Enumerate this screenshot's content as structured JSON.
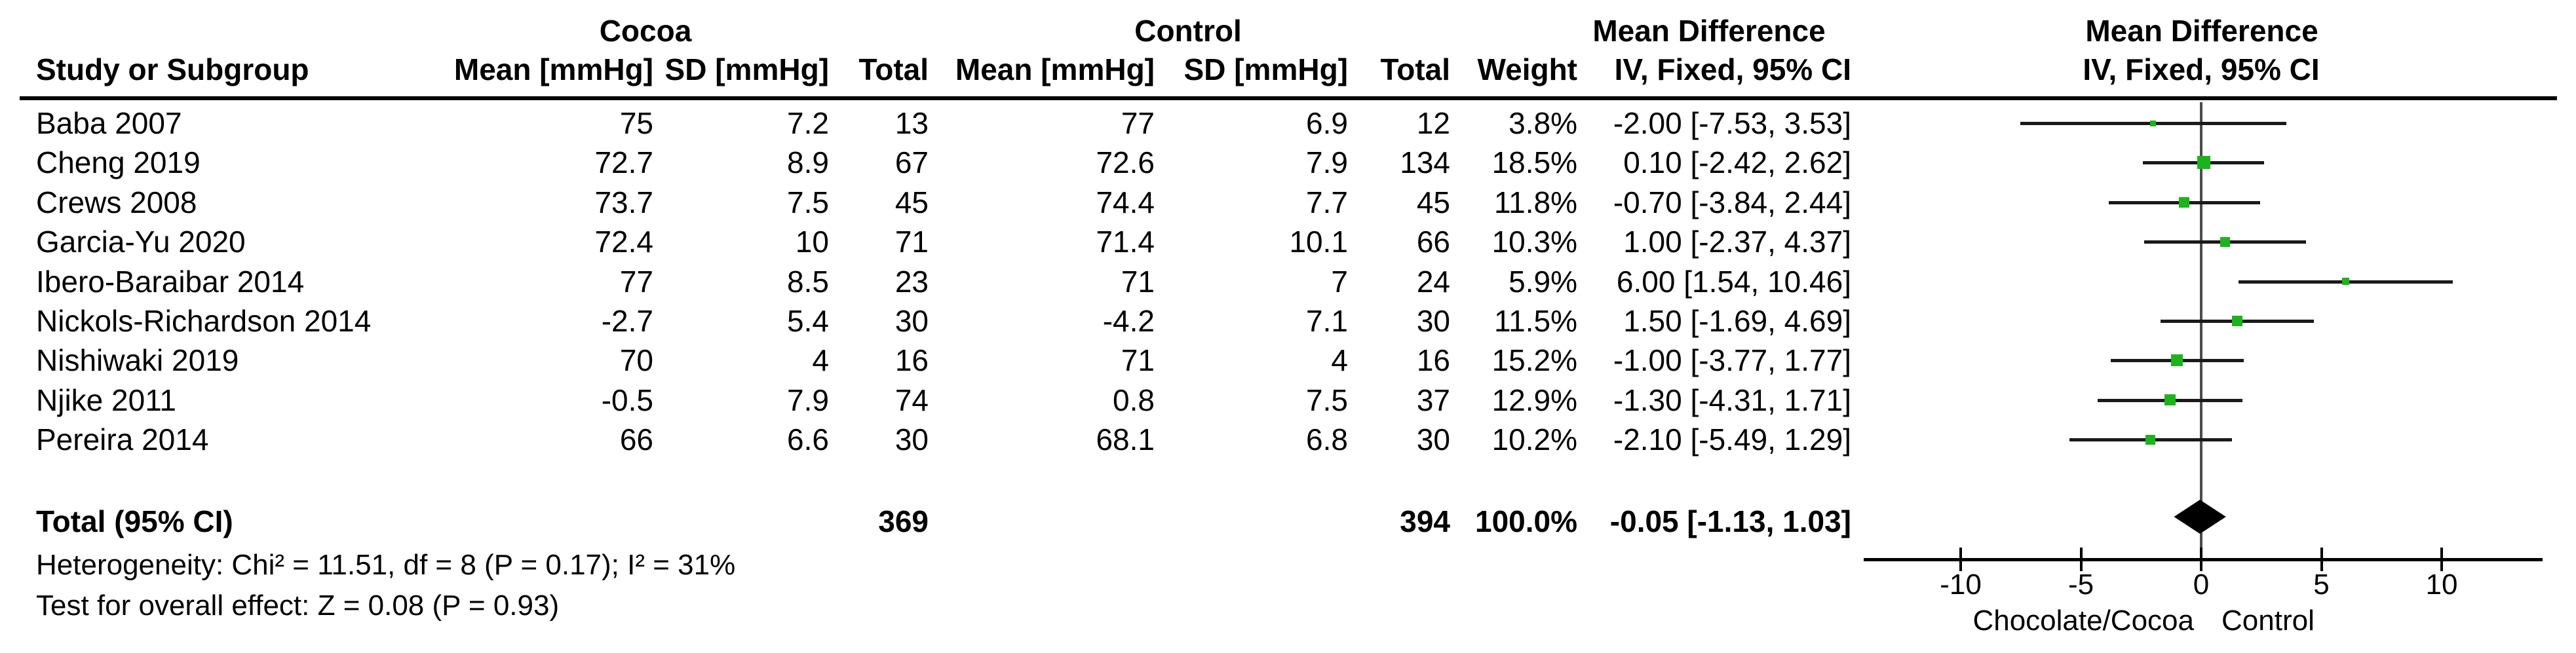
{
  "chart_data": {
    "type": "forest",
    "title": "Mean Difference forest plot (IV, Fixed, 95% CI)",
    "headers": {
      "group_cocoa": "Cocoa",
      "group_control": "Control",
      "md_text_col": "Mean Difference",
      "md_plot_col": "Mean Difference",
      "sub": [
        "Study or Subgroup",
        "Mean [mmHg]",
        "SD [mmHg]",
        "Total",
        "Mean [mmHg]",
        "SD [mmHg]",
        "Total",
        "Weight",
        "IV, Fixed, 95% CI",
        "IV, Fixed, 95% CI"
      ]
    },
    "studies": [
      {
        "name": "Baba 2007",
        "cocoa_mean": "75",
        "cocoa_sd": "7.2",
        "cocoa_total": "13",
        "control_mean": "77",
        "control_sd": "6.9",
        "control_total": "12",
        "weight": "3.8%",
        "weight_pct": 3.8,
        "ci_text": "-2.00 [-7.53, 3.53]",
        "est": -2.0,
        "lo": -7.53,
        "hi": 3.53
      },
      {
        "name": "Cheng 2019",
        "cocoa_mean": "72.7",
        "cocoa_sd": "8.9",
        "cocoa_total": "67",
        "control_mean": "72.6",
        "control_sd": "7.9",
        "control_total": "134",
        "weight": "18.5%",
        "weight_pct": 18.5,
        "ci_text": "0.10 [-2.42, 2.62]",
        "est": 0.1,
        "lo": -2.42,
        "hi": 2.62
      },
      {
        "name": "Crews 2008",
        "cocoa_mean": "73.7",
        "cocoa_sd": "7.5",
        "cocoa_total": "45",
        "control_mean": "74.4",
        "control_sd": "7.7",
        "control_total": "45",
        "weight": "11.8%",
        "weight_pct": 11.8,
        "ci_text": "-0.70 [-3.84, 2.44]",
        "est": -0.7,
        "lo": -3.84,
        "hi": 2.44
      },
      {
        "name": "Garcia-Yu 2020",
        "cocoa_mean": "72.4",
        "cocoa_sd": "10",
        "cocoa_total": "71",
        "control_mean": "71.4",
        "control_sd": "10.1",
        "control_total": "66",
        "weight": "10.3%",
        "weight_pct": 10.3,
        "ci_text": "1.00 [-2.37, 4.37]",
        "est": 1.0,
        "lo": -2.37,
        "hi": 4.37
      },
      {
        "name": "Ibero-Baraibar 2014",
        "cocoa_mean": "77",
        "cocoa_sd": "8.5",
        "cocoa_total": "23",
        "control_mean": "71",
        "control_sd": "7",
        "control_total": "24",
        "weight": "5.9%",
        "weight_pct": 5.9,
        "ci_text": "6.00 [1.54, 10.46]",
        "est": 6.0,
        "lo": 1.54,
        "hi": 10.46
      },
      {
        "name": "Nickols-Richardson 2014",
        "cocoa_mean": "-2.7",
        "cocoa_sd": "5.4",
        "cocoa_total": "30",
        "control_mean": "-4.2",
        "control_sd": "7.1",
        "control_total": "30",
        "weight": "11.5%",
        "weight_pct": 11.5,
        "ci_text": "1.50 [-1.69, 4.69]",
        "est": 1.5,
        "lo": -1.69,
        "hi": 4.69
      },
      {
        "name": "Nishiwaki 2019",
        "cocoa_mean": "70",
        "cocoa_sd": "4",
        "cocoa_total": "16",
        "control_mean": "71",
        "control_sd": "4",
        "control_total": "16",
        "weight": "15.2%",
        "weight_pct": 15.2,
        "ci_text": "-1.00 [-3.77, 1.77]",
        "est": -1.0,
        "lo": -3.77,
        "hi": 1.77
      },
      {
        "name": "Njike 2011",
        "cocoa_mean": "-0.5",
        "cocoa_sd": "7.9",
        "cocoa_total": "74",
        "control_mean": "0.8",
        "control_sd": "7.5",
        "control_total": "37",
        "weight": "12.9%",
        "weight_pct": 12.9,
        "ci_text": "-1.30 [-4.31, 1.71]",
        "est": -1.3,
        "lo": -4.31,
        "hi": 1.71
      },
      {
        "name": "Pereira 2014",
        "cocoa_mean": "66",
        "cocoa_sd": "6.6",
        "cocoa_total": "30",
        "control_mean": "68.1",
        "control_sd": "6.8",
        "control_total": "30",
        "weight": "10.2%",
        "weight_pct": 10.2,
        "ci_text": "-2.10 [-5.49, 1.29]",
        "est": -2.1,
        "lo": -5.49,
        "hi": 1.29
      }
    ],
    "total": {
      "label": "Total (95% CI)",
      "n_cocoa": "369",
      "n_control": "394",
      "weight": "100.0%",
      "ci_text": "-0.05 [-1.13, 1.03]",
      "est": -0.05,
      "lo": -1.13,
      "hi": 1.03
    },
    "footnotes": {
      "heterogeneity": "Heterogeneity: Chi² = 11.51, df = 8 (P = 0.17); I² = 31%",
      "overall_effect": "Test for overall effect: Z = 0.08 (P = 0.93)"
    },
    "axis": {
      "ticks": [
        -10,
        -5,
        0,
        5,
        10
      ],
      "min": -10,
      "max": 10,
      "favours_left": "Chocolate/Cocoa",
      "favours_right": "Control"
    },
    "colors": {
      "marker_green": "#1db31d",
      "diamond": "#000000",
      "ci_line": "#1a1a1a",
      "zero_line": "#4d4d4d"
    }
  }
}
